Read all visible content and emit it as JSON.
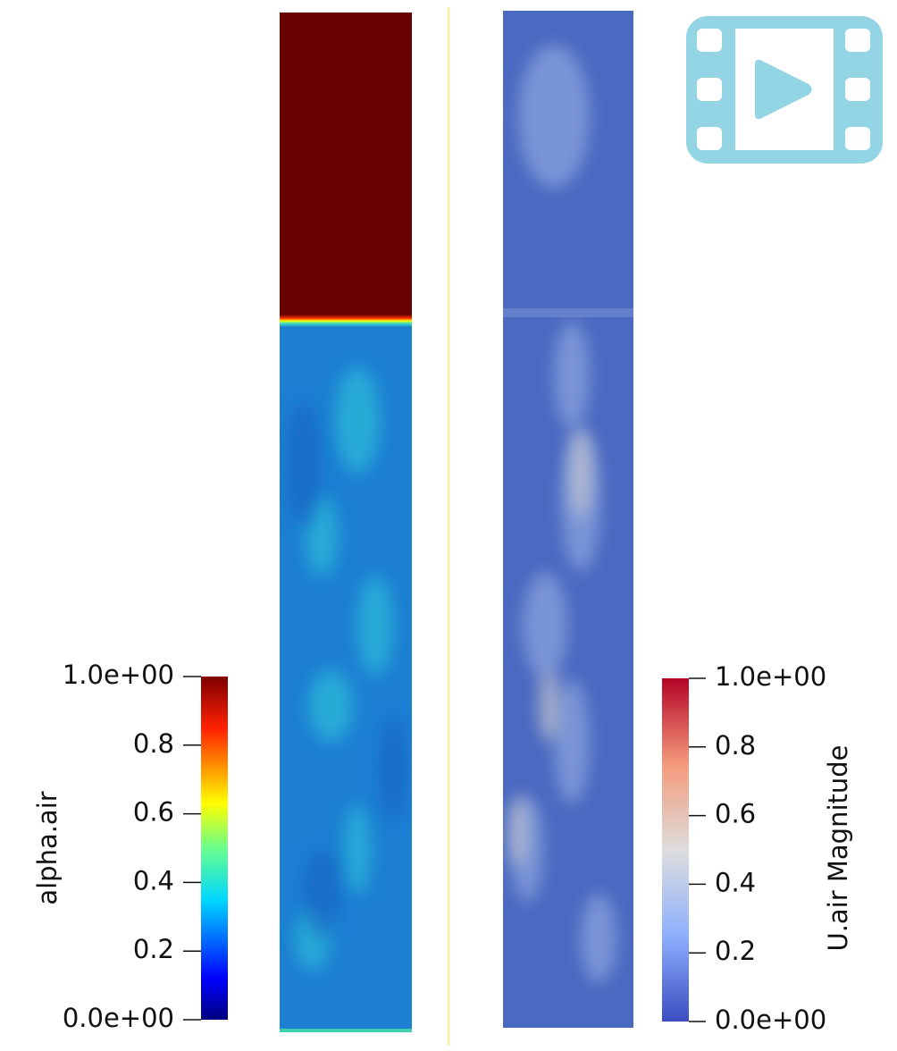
{
  "colorbars": [
    {
      "title": "alpha.air",
      "ticks": [
        {
          "value": 0,
          "label": "0.0e+00"
        },
        0.2,
        0.4,
        0.6,
        0.8,
        {
          "value": 1,
          "label": "1.0e+00"
        }
      ]
    },
    {
      "title": "U.air Magnitude",
      "ticks": [
        {
          "value": 0,
          "label": "0.0e+00"
        },
        0.2,
        0.4,
        0.6,
        0.8,
        {
          "value": 1,
          "label": "1.0e+00"
        }
      ]
    }
  ]
}
